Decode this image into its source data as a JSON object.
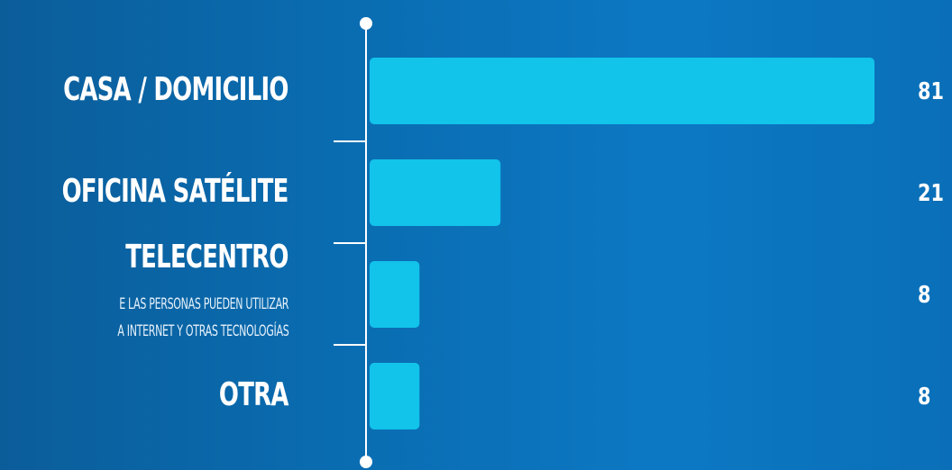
{
  "chart_data": {
    "type": "bar",
    "orientation": "horizontal",
    "categories": [
      "CASA / DOMICILIO",
      "OFICINA SATÉLITE",
      "TELECENTRO",
      "OTRA"
    ],
    "category_notes": [
      "",
      "",
      "E LAS PERSONAS PUEDEN UTILIZAR\nA INTERNET Y OTRAS TECNOLOGÍAS",
      ""
    ],
    "values": [
      81,
      21,
      8,
      8
    ],
    "value_labels": [
      "81",
      "21",
      "8",
      "8"
    ],
    "colors": {
      "bar": "#12c3ea",
      "axis": "#ffffff"
    }
  }
}
